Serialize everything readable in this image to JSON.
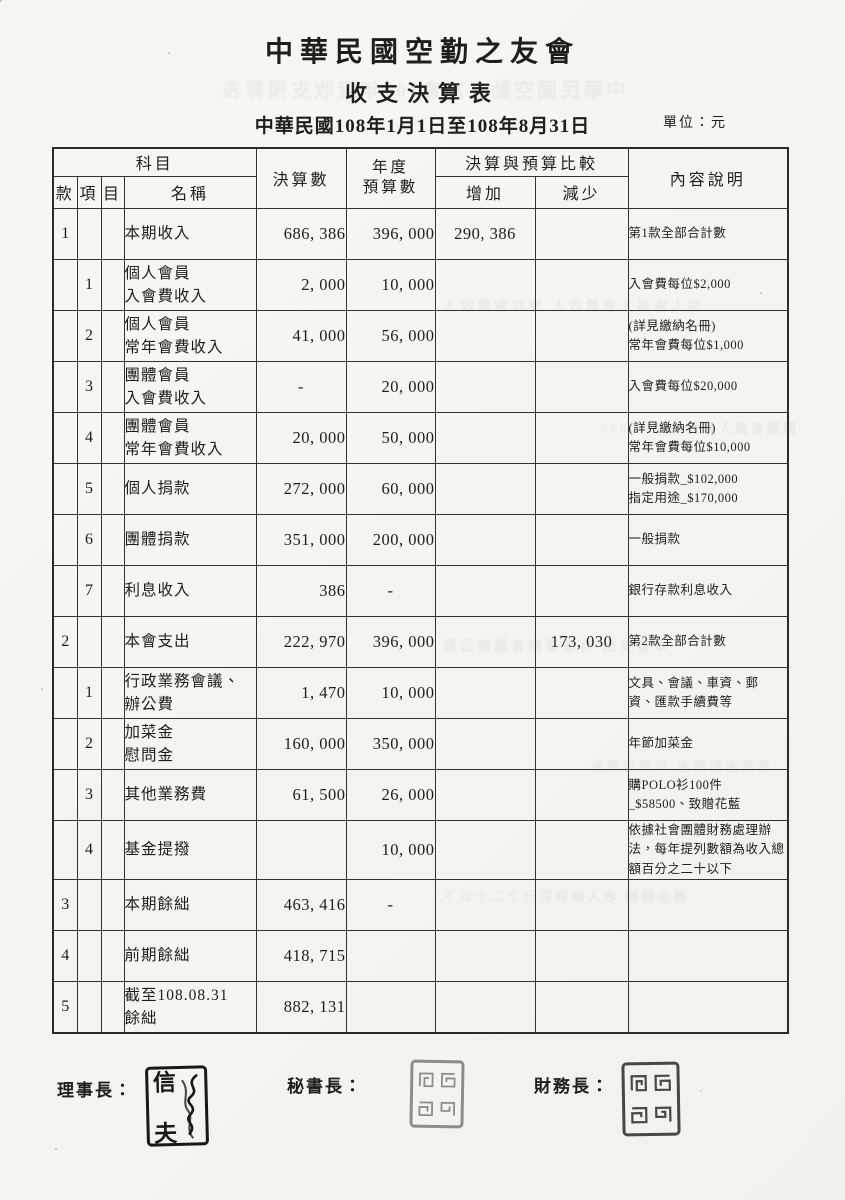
{
  "header": {
    "org_title": "中華民國空勤之友會",
    "report_title": "收支決算表",
    "period": "中華民國108年1月1日至108年8月31日",
    "unit_label": "單位：元"
  },
  "table": {
    "headers": {
      "subject_group": "科目",
      "kuan": "款",
      "xiang": "項",
      "mu": "目",
      "name": "名稱",
      "final": "決算數",
      "budget": "年度\n預算數",
      "compare_group": "決算與預算比較",
      "increase": "增加",
      "decrease": "減少",
      "notes": "內容說明"
    },
    "rows": [
      {
        "kuan": "1",
        "xiang": "",
        "mu": "",
        "name": "本期收入",
        "final": "686, 386",
        "budget": "396, 000",
        "increase": "290, 386",
        "decrease": "",
        "note": "第1款全部合計數"
      },
      {
        "kuan": "",
        "xiang": "1",
        "mu": "",
        "name": "個人會員\n入會費收入",
        "final": "2, 000",
        "budget": "10, 000",
        "increase": "",
        "decrease": "",
        "note": "入會費每位$2,000"
      },
      {
        "kuan": "",
        "xiang": "2",
        "mu": "",
        "name": "個人會員\n常年會費收入",
        "final": "41, 000",
        "budget": "56, 000",
        "increase": "",
        "decrease": "",
        "note": "(詳見繳納名冊)\n常年會費每位$1,000"
      },
      {
        "kuan": "",
        "xiang": "3",
        "mu": "",
        "name": "團體會員\n入會費收入",
        "final": "-",
        "budget": "20, 000",
        "increase": "",
        "decrease": "",
        "note": "入會費每位$20,000"
      },
      {
        "kuan": "",
        "xiang": "4",
        "mu": "",
        "name": "團體會員\n常年會費收入",
        "final": "20, 000",
        "budget": "50, 000",
        "increase": "",
        "decrease": "",
        "note": "(詳見繳納名冊)\n常年會費每位$10,000"
      },
      {
        "kuan": "",
        "xiang": "5",
        "mu": "",
        "name": "個人捐款",
        "final": "272, 000",
        "budget": "60, 000",
        "increase": "",
        "decrease": "",
        "note": "一般捐款_$102,000\n指定用途_$170,000"
      },
      {
        "kuan": "",
        "xiang": "6",
        "mu": "",
        "name": "團體捐款",
        "final": "351, 000",
        "budget": "200, 000",
        "increase": "",
        "decrease": "",
        "note": "一般捐款"
      },
      {
        "kuan": "",
        "xiang": "7",
        "mu": "",
        "name": "利息收入",
        "final": "386",
        "budget": "-",
        "increase": "",
        "decrease": "",
        "note": "銀行存款利息收入"
      },
      {
        "kuan": "2",
        "xiang": "",
        "mu": "",
        "name": "本會支出",
        "final": "222, 970",
        "budget": "396, 000",
        "increase": "",
        "decrease": "173, 030",
        "note": "第2款全部合計數"
      },
      {
        "kuan": "",
        "xiang": "1",
        "mu": "",
        "name": "行政業務會議、\n辦公費",
        "final": "1, 470",
        "budget": "10, 000",
        "increase": "",
        "decrease": "",
        "note": "文具、會議、車資、郵\n資、匯款手續費等"
      },
      {
        "kuan": "",
        "xiang": "2",
        "mu": "",
        "name": "加菜金\n慰問金",
        "final": "160, 000",
        "budget": "350, 000",
        "increase": "",
        "decrease": "",
        "note": "年節加菜金"
      },
      {
        "kuan": "",
        "xiang": "3",
        "mu": "",
        "name": "其他業務費",
        "final": "61, 500",
        "budget": "26, 000",
        "increase": "",
        "decrease": "",
        "note": "購POLO衫100件\n_$58500、致贈花藍"
      },
      {
        "kuan": "",
        "xiang": "4",
        "mu": "",
        "name": "基金提撥",
        "final": "",
        "budget": "10, 000",
        "increase": "",
        "decrease": "",
        "note": "依據社會團體財務處理辦法，每年提列數額為收入總額百分之二十以下"
      },
      {
        "kuan": "3",
        "xiang": "",
        "mu": "",
        "name": "本期餘絀",
        "final": "463, 416",
        "budget": "-",
        "increase": "",
        "decrease": "",
        "note": ""
      },
      {
        "kuan": "4",
        "xiang": "",
        "mu": "",
        "name": "前期餘絀",
        "final": "418, 715",
        "budget": "",
        "increase": "",
        "decrease": "",
        "note": ""
      },
      {
        "kuan": "5",
        "xiang": "",
        "mu": "",
        "name": "截至108.08.31\n餘絀",
        "final": "882, 131",
        "budget": "",
        "increase": "",
        "decrease": "",
        "note": ""
      }
    ]
  },
  "footer": {
    "chairman_label": "理事長：",
    "secretary_label": "秘書長：",
    "treasurer_label": "財務長：",
    "chairman_seal_char1": "信",
    "chairman_seal_char2": "夫"
  },
  "scan": {
    "bleed_lines": [
      "中華民國空勤之友會108年度收支預算表",
      "個人會員入會費收入 常年會費收入",
      "團體會員入會費每位20,000",
      "本會支出 行政業務會議辦公費",
      "加菜金慰問金 年節加菜金",
      "基金提撥 收入總額百分之二十以下"
    ]
  },
  "colors": {
    "ink": "#1f1e1b",
    "table_line": "#34332f",
    "seal_dark": "#181816",
    "seal_gray": "#8e8d85",
    "paper": "#f6f5f1"
  }
}
